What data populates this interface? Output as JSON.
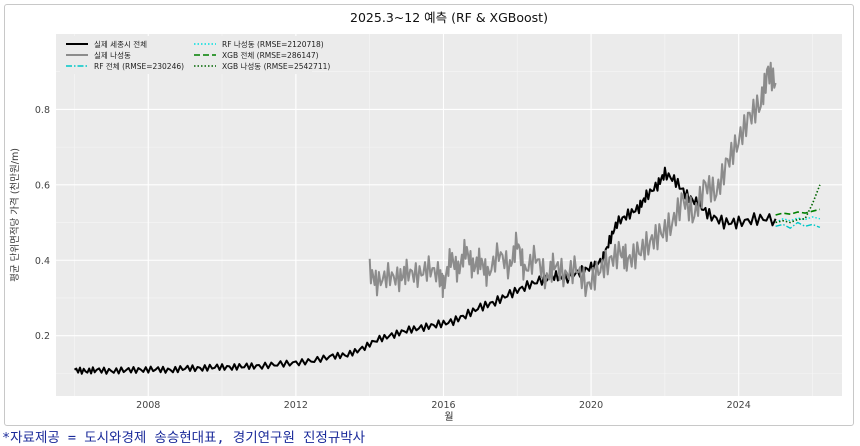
{
  "chart_data": {
    "type": "line",
    "title": "2025.3~12 예측 (RF & XGBoost)",
    "xlabel": "월",
    "ylabel": "평균 단위면적당 가격 (천만원/m)",
    "xlim": [
      2005.5,
      2026.8
    ],
    "ylim": [
      0.04,
      1.0
    ],
    "x_ticks": [
      2008,
      2012,
      2016,
      2020,
      2024
    ],
    "y_ticks": [
      0.2,
      0.4,
      0.6,
      0.8
    ],
    "grid": true,
    "legend_position": "top-left",
    "series": [
      {
        "name": "실제 세종시 전체",
        "color": "#000000",
        "style": "solid",
        "width": 2,
        "points": [
          [
            2006.0,
            0.11
          ],
          [
            2006.3,
            0.105
          ],
          [
            2006.6,
            0.11
          ],
          [
            2007.0,
            0.105
          ],
          [
            2007.4,
            0.11
          ],
          [
            2007.8,
            0.108
          ],
          [
            2008.2,
            0.112
          ],
          [
            2008.6,
            0.107
          ],
          [
            2009.0,
            0.115
          ],
          [
            2009.4,
            0.112
          ],
          [
            2009.8,
            0.118
          ],
          [
            2010.2,
            0.115
          ],
          [
            2010.6,
            0.12
          ],
          [
            2011.0,
            0.118
          ],
          [
            2011.5,
            0.125
          ],
          [
            2012.0,
            0.127
          ],
          [
            2012.5,
            0.135
          ],
          [
            2013.0,
            0.145
          ],
          [
            2013.4,
            0.15
          ],
          [
            2013.8,
            0.165
          ],
          [
            2014.2,
            0.19
          ],
          [
            2014.6,
            0.2
          ],
          [
            2015.0,
            0.215
          ],
          [
            2015.4,
            0.22
          ],
          [
            2015.8,
            0.23
          ],
          [
            2016.2,
            0.235
          ],
          [
            2016.6,
            0.255
          ],
          [
            2017.0,
            0.275
          ],
          [
            2017.4,
            0.29
          ],
          [
            2017.8,
            0.31
          ],
          [
            2018.2,
            0.33
          ],
          [
            2018.6,
            0.345
          ],
          [
            2019.0,
            0.36
          ],
          [
            2019.3,
            0.35
          ],
          [
            2019.7,
            0.37
          ],
          [
            2020.0,
            0.38
          ],
          [
            2020.3,
            0.4
          ],
          [
            2020.5,
            0.45
          ],
          [
            2020.7,
            0.5
          ],
          [
            2021.0,
            0.52
          ],
          [
            2021.3,
            0.54
          ],
          [
            2021.5,
            0.57
          ],
          [
            2021.8,
            0.6
          ],
          [
            2022.0,
            0.63
          ],
          [
            2022.3,
            0.61
          ],
          [
            2022.6,
            0.57
          ],
          [
            2022.9,
            0.55
          ],
          [
            2023.2,
            0.52
          ],
          [
            2023.6,
            0.5
          ],
          [
            2024.0,
            0.5
          ],
          [
            2024.5,
            0.51
          ],
          [
            2025.0,
            0.51
          ]
        ]
      },
      {
        "name": "실제 나성동",
        "color": "#8c8c8c",
        "style": "solid",
        "width": 2,
        "points": [
          [
            2014.0,
            0.37
          ],
          [
            2014.2,
            0.34
          ],
          [
            2014.5,
            0.36
          ],
          [
            2014.8,
            0.35
          ],
          [
            2015.0,
            0.37
          ],
          [
            2015.3,
            0.36
          ],
          [
            2015.6,
            0.38
          ],
          [
            2015.9,
            0.36
          ],
          [
            2016.0,
            0.33
          ],
          [
            2016.2,
            0.41
          ],
          [
            2016.4,
            0.37
          ],
          [
            2016.6,
            0.43
          ],
          [
            2016.8,
            0.38
          ],
          [
            2017.0,
            0.4
          ],
          [
            2017.2,
            0.36
          ],
          [
            2017.5,
            0.42
          ],
          [
            2017.8,
            0.38
          ],
          [
            2018.0,
            0.45
          ],
          [
            2018.2,
            0.37
          ],
          [
            2018.5,
            0.41
          ],
          [
            2018.8,
            0.35
          ],
          [
            2019.0,
            0.39
          ],
          [
            2019.3,
            0.36
          ],
          [
            2019.6,
            0.38
          ],
          [
            2019.9,
            0.33
          ],
          [
            2020.2,
            0.37
          ],
          [
            2020.5,
            0.4
          ],
          [
            2020.8,
            0.42
          ],
          [
            2021.0,
            0.4
          ],
          [
            2021.3,
            0.42
          ],
          [
            2021.6,
            0.45
          ],
          [
            2021.9,
            0.47
          ],
          [
            2022.2,
            0.5
          ],
          [
            2022.5,
            0.56
          ],
          [
            2022.8,
            0.52
          ],
          [
            2023.1,
            0.6
          ],
          [
            2023.4,
            0.58
          ],
          [
            2023.7,
            0.66
          ],
          [
            2024.0,
            0.72
          ],
          [
            2024.3,
            0.78
          ],
          [
            2024.6,
            0.82
          ],
          [
            2024.8,
            0.9
          ],
          [
            2025.0,
            0.87
          ]
        ]
      },
      {
        "name": "RF 전체 (RMSE=230246)",
        "color": "#00c8c8",
        "style": "dashdot",
        "width": 1.4,
        "points": [
          [
            2025.0,
            0.49
          ],
          [
            2025.2,
            0.495
          ],
          [
            2025.4,
            0.485
          ],
          [
            2025.6,
            0.5
          ],
          [
            2025.8,
            0.49
          ],
          [
            2026.0,
            0.495
          ],
          [
            2026.2,
            0.487
          ]
        ]
      },
      {
        "name": "RF 나성동 (RMSE=2120718)",
        "color": "#00e0e0",
        "style": "dotted",
        "width": 1.4,
        "points": [
          [
            2025.0,
            0.5
          ],
          [
            2025.2,
            0.51
          ],
          [
            2025.4,
            0.505
          ],
          [
            2025.6,
            0.512
          ],
          [
            2025.8,
            0.508
          ],
          [
            2026.0,
            0.515
          ],
          [
            2026.2,
            0.51
          ]
        ]
      },
      {
        "name": "XGB 전체 (RMSE=286147)",
        "color": "#008000",
        "style": "dashed",
        "width": 1.6,
        "points": [
          [
            2025.0,
            0.52
          ],
          [
            2025.2,
            0.525
          ],
          [
            2025.4,
            0.522
          ],
          [
            2025.6,
            0.528
          ],
          [
            2025.8,
            0.525
          ],
          [
            2026.0,
            0.53
          ],
          [
            2026.2,
            0.535
          ]
        ]
      },
      {
        "name": "XGB 나성동 (RMSE=2542711)",
        "color": "#006400",
        "style": "dotted",
        "width": 1.6,
        "points": [
          [
            2025.0,
            0.5
          ],
          [
            2025.2,
            0.505
          ],
          [
            2025.4,
            0.5
          ],
          [
            2025.6,
            0.508
          ],
          [
            2025.8,
            0.51
          ],
          [
            2026.0,
            0.55
          ],
          [
            2026.2,
            0.6
          ]
        ]
      }
    ]
  },
  "caption": "*자료제공 = 도시와경제 송승현대표, 경기연구원 진정규박사"
}
